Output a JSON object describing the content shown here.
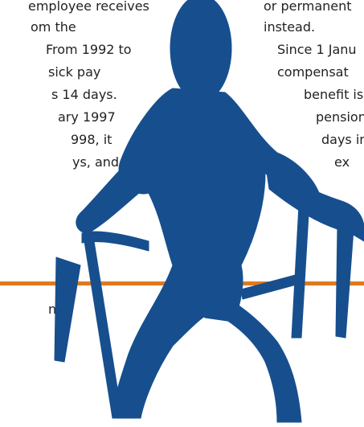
{
  "left_column": {
    "lines": [
      "employee receives",
      "om the",
      "From 1992 to",
      "sick pay",
      "s 14 days.",
      "ary 1997",
      "998, it",
      "ys, and",
      "n"
    ]
  },
  "right_column": {
    "lines": [
      "or permanent",
      "instead.",
      "Since 1 Janu",
      "compensat",
      "benefit is",
      "pension",
      "days in",
      "ex"
    ]
  }
}
